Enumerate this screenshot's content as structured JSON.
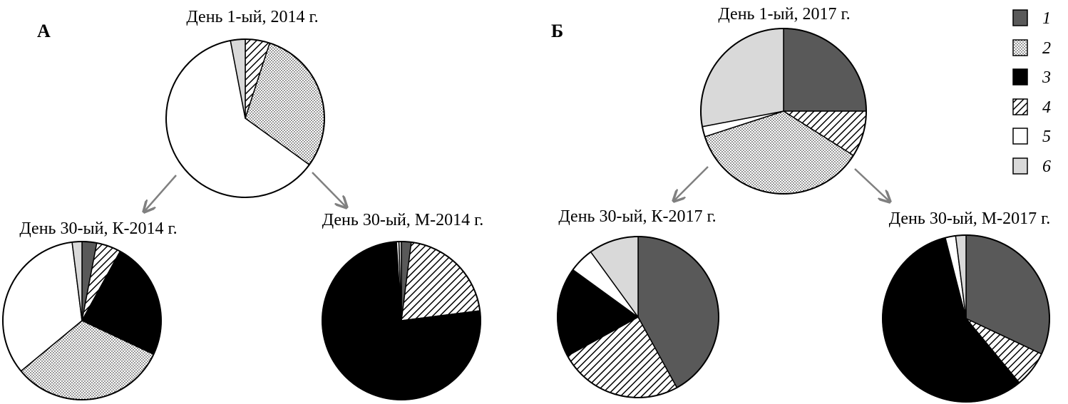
{
  "panels": [
    {
      "label": "А"
    },
    {
      "label": "Б"
    }
  ],
  "legend": {
    "items": [
      {
        "label": "1",
        "fill": "dark"
      },
      {
        "label": "2",
        "fill": "dots"
      },
      {
        "label": "3",
        "fill": "black"
      },
      {
        "label": "4",
        "fill": "hatch"
      },
      {
        "label": "5",
        "fill": "white"
      },
      {
        "label": "6",
        "fill": "light"
      }
    ]
  },
  "colors": {
    "dark": "#595959",
    "black": "#000000",
    "white": "#ffffff",
    "light": "#d9d9d9",
    "outline": "#000000",
    "arrow": "#808080"
  },
  "chart_data": [
    {
      "type": "pie",
      "title": "День 1-ый, 2014 г.",
      "series": [
        {
          "category": "1",
          "value": 0
        },
        {
          "category": "4",
          "value": 5
        },
        {
          "category": "2",
          "value": 30
        },
        {
          "category": "3",
          "value": 0
        },
        {
          "category": "5",
          "value": 62
        },
        {
          "category": "6",
          "value": 3
        }
      ]
    },
    {
      "type": "pie",
      "title": "День 30-ый, К-2014 г.",
      "series": [
        {
          "category": "1",
          "value": 3
        },
        {
          "category": "4",
          "value": 5
        },
        {
          "category": "3",
          "value": 24
        },
        {
          "category": "2",
          "value": 32
        },
        {
          "category": "5",
          "value": 34
        },
        {
          "category": "6",
          "value": 2
        }
      ]
    },
    {
      "type": "pie",
      "title": "День 30-ый, М-2014 г.",
      "series": [
        {
          "category": "1",
          "value": 2
        },
        {
          "category": "4",
          "value": 21
        },
        {
          "category": "3",
          "value": 76
        },
        {
          "category": "5",
          "value": 0.5
        },
        {
          "category": "6",
          "value": 0.5
        }
      ]
    },
    {
      "type": "pie",
      "title": "День 1-ый, 2017 г.",
      "series": [
        {
          "category": "1",
          "value": 25
        },
        {
          "category": "4",
          "value": 9
        },
        {
          "category": "3",
          "value": 0
        },
        {
          "category": "2",
          "value": 36
        },
        {
          "category": "5",
          "value": 2
        },
        {
          "category": "6",
          "value": 28
        }
      ]
    },
    {
      "type": "pie",
      "title": "День 30-ый, К-2017 г.",
      "series": [
        {
          "category": "1",
          "value": 42
        },
        {
          "category": "4",
          "value": 25
        },
        {
          "category": "3",
          "value": 18
        },
        {
          "category": "5",
          "value": 5
        },
        {
          "category": "6",
          "value": 10
        }
      ]
    },
    {
      "type": "pie",
      "title": "День 30-ый, М-2017 г.",
      "series": [
        {
          "category": "1",
          "value": 32
        },
        {
          "category": "4",
          "value": 7
        },
        {
          "category": "3",
          "value": 57
        },
        {
          "category": "5",
          "value": 2
        },
        {
          "category": "6",
          "value": 2
        }
      ]
    }
  ]
}
